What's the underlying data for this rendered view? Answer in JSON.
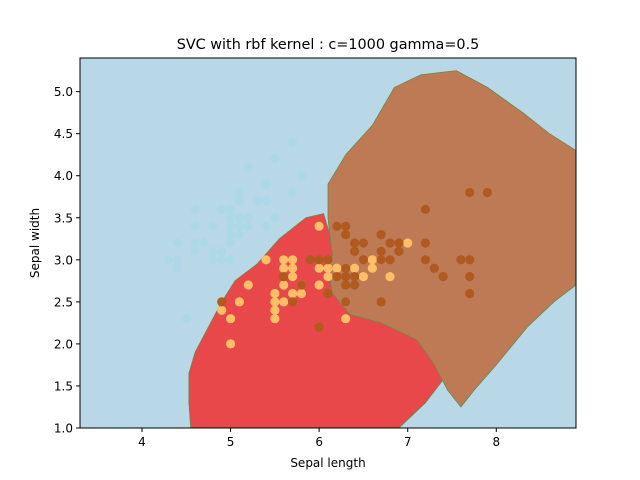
{
  "chart_data": {
    "type": "scatter",
    "title": "SVC with rbf kernel : c=1000 gamma=0.5",
    "xlabel": "Sepal length",
    "ylabel": "Sepal width",
    "xlim": [
      3.3,
      8.9
    ],
    "ylim": [
      1.0,
      5.4
    ],
    "x_ticks": [
      "4",
      "5",
      "6",
      "7",
      "8"
    ],
    "y_ticks": [
      "1.0",
      "1.5",
      "2.0",
      "2.5",
      "3.0",
      "3.5",
      "4.0",
      "4.5",
      "5.0"
    ],
    "grid": false,
    "legend": "none",
    "background_region_color": "#b8d8e8",
    "regions": [
      {
        "class": "versicolor",
        "color": "#e8484a",
        "outline": [
          [
            4.55,
            1.0
          ],
          [
            4.53,
            1.3
          ],
          [
            4.53,
            1.65
          ],
          [
            4.6,
            1.9
          ],
          [
            4.75,
            2.2
          ],
          [
            4.9,
            2.5
          ],
          [
            5.05,
            2.75
          ],
          [
            5.3,
            2.95
          ],
          [
            5.55,
            3.25
          ],
          [
            5.85,
            3.5
          ],
          [
            6.05,
            3.55
          ],
          [
            6.12,
            3.3
          ],
          [
            6.15,
            3.05
          ],
          [
            6.1,
            2.9
          ],
          [
            6.15,
            2.6
          ],
          [
            6.35,
            2.35
          ],
          [
            6.7,
            2.25
          ],
          [
            6.9,
            2.15
          ],
          [
            7.1,
            2.05
          ],
          [
            7.3,
            1.85
          ],
          [
            7.42,
            1.6
          ],
          [
            7.2,
            1.3
          ],
          [
            6.9,
            1.0
          ]
        ]
      },
      {
        "class": "virginica",
        "color": "#bd7a55",
        "outline": [
          [
            6.1,
            3.5
          ],
          [
            6.1,
            3.9
          ],
          [
            6.3,
            4.25
          ],
          [
            6.6,
            4.6
          ],
          [
            6.85,
            5.05
          ],
          [
            7.15,
            5.2
          ],
          [
            7.55,
            5.25
          ],
          [
            7.9,
            5.05
          ],
          [
            8.3,
            4.75
          ],
          [
            8.6,
            4.5
          ],
          [
            8.9,
            4.3
          ],
          [
            8.9,
            2.7
          ],
          [
            8.65,
            2.5
          ],
          [
            8.35,
            2.2
          ],
          [
            8.0,
            1.75
          ],
          [
            7.75,
            1.45
          ],
          [
            7.6,
            1.25
          ],
          [
            7.45,
            1.45
          ],
          [
            7.3,
            1.75
          ],
          [
            7.1,
            2.05
          ],
          [
            6.9,
            2.15
          ],
          [
            6.7,
            2.25
          ],
          [
            6.35,
            2.35
          ],
          [
            6.15,
            2.6
          ],
          [
            6.1,
            2.9
          ],
          [
            6.15,
            3.05
          ],
          [
            6.12,
            3.3
          ]
        ]
      }
    ],
    "series": [
      {
        "color": "#add8e6",
        "points": [
          [
            4.3,
            3.0
          ],
          [
            4.4,
            2.9
          ],
          [
            4.4,
            3.0
          ],
          [
            4.4,
            3.2
          ],
          [
            4.5,
            2.3
          ],
          [
            4.6,
            3.1
          ],
          [
            4.6,
            3.2
          ],
          [
            4.6,
            3.4
          ],
          [
            4.6,
            3.6
          ],
          [
            4.7,
            3.2
          ],
          [
            4.8,
            3.0
          ],
          [
            4.8,
            3.1
          ],
          [
            4.8,
            3.4
          ],
          [
            4.9,
            3.0
          ],
          [
            4.9,
            3.1
          ],
          [
            4.9,
            3.6
          ],
          [
            5.0,
            3.0
          ],
          [
            5.0,
            3.2
          ],
          [
            5.0,
            3.3
          ],
          [
            5.0,
            3.4
          ],
          [
            5.0,
            3.5
          ],
          [
            5.0,
            3.6
          ],
          [
            5.1,
            3.3
          ],
          [
            5.1,
            3.4
          ],
          [
            5.1,
            3.5
          ],
          [
            5.1,
            3.7
          ],
          [
            5.1,
            3.8
          ],
          [
            5.2,
            3.4
          ],
          [
            5.2,
            3.5
          ],
          [
            5.2,
            4.1
          ],
          [
            5.3,
            3.7
          ],
          [
            5.4,
            3.4
          ],
          [
            5.4,
            3.7
          ],
          [
            5.4,
            3.9
          ],
          [
            5.5,
            3.5
          ],
          [
            5.5,
            4.2
          ],
          [
            5.7,
            3.8
          ],
          [
            5.7,
            4.4
          ],
          [
            5.8,
            4.0
          ]
        ]
      },
      {
        "color": "#ffbf66",
        "points": [
          [
            4.9,
            2.4
          ],
          [
            5.0,
            2.0
          ],
          [
            5.0,
            2.3
          ],
          [
            5.1,
            2.5
          ],
          [
            5.2,
            2.7
          ],
          [
            5.4,
            3.0
          ],
          [
            5.5,
            2.3
          ],
          [
            5.5,
            2.4
          ],
          [
            5.5,
            2.5
          ],
          [
            5.5,
            2.6
          ],
          [
            5.6,
            2.5
          ],
          [
            5.6,
            2.7
          ],
          [
            5.6,
            2.9
          ],
          [
            5.6,
            3.0
          ],
          [
            5.7,
            2.6
          ],
          [
            5.7,
            2.8
          ],
          [
            5.7,
            2.9
          ],
          [
            5.7,
            3.0
          ],
          [
            5.8,
            2.6
          ],
          [
            5.8,
            2.7
          ],
          [
            6.0,
            2.7
          ],
          [
            6.0,
            2.9
          ],
          [
            6.0,
            3.4
          ],
          [
            6.1,
            2.8
          ],
          [
            6.1,
            2.9
          ],
          [
            6.2,
            2.9
          ],
          [
            6.3,
            2.3
          ],
          [
            6.3,
            2.5
          ],
          [
            6.3,
            2.9
          ],
          [
            6.4,
            2.9
          ],
          [
            6.5,
            2.8
          ],
          [
            6.6,
            2.9
          ],
          [
            6.6,
            3.0
          ],
          [
            6.7,
            3.0
          ],
          [
            6.8,
            2.8
          ],
          [
            7.0,
            3.2
          ]
        ]
      },
      {
        "color": "#b05a20",
        "points": [
          [
            4.9,
            2.5
          ],
          [
            5.6,
            2.8
          ],
          [
            5.7,
            2.5
          ],
          [
            5.8,
            2.7
          ],
          [
            5.9,
            3.0
          ],
          [
            6.0,
            2.2
          ],
          [
            6.0,
            3.0
          ],
          [
            6.1,
            2.6
          ],
          [
            6.1,
            3.0
          ],
          [
            6.2,
            2.8
          ],
          [
            6.2,
            3.4
          ],
          [
            6.3,
            2.5
          ],
          [
            6.3,
            2.7
          ],
          [
            6.3,
            2.8
          ],
          [
            6.3,
            2.9
          ],
          [
            6.3,
            3.3
          ],
          [
            6.3,
            3.4
          ],
          [
            6.4,
            2.7
          ],
          [
            6.4,
            2.8
          ],
          [
            6.4,
            3.1
          ],
          [
            6.4,
            3.2
          ],
          [
            6.5,
            3.0
          ],
          [
            6.5,
            3.2
          ],
          [
            6.7,
            2.5
          ],
          [
            6.7,
            3.0
          ],
          [
            6.7,
            3.1
          ],
          [
            6.7,
            3.3
          ],
          [
            6.8,
            3.0
          ],
          [
            6.8,
            3.2
          ],
          [
            6.9,
            3.1
          ],
          [
            6.9,
            3.2
          ],
          [
            7.2,
            3.0
          ],
          [
            7.2,
            3.2
          ],
          [
            7.2,
            3.6
          ],
          [
            7.3,
            2.9
          ],
          [
            7.4,
            2.8
          ],
          [
            7.6,
            3.0
          ],
          [
            7.7,
            2.6
          ],
          [
            7.7,
            2.8
          ],
          [
            7.7,
            3.0
          ],
          [
            7.7,
            3.8
          ],
          [
            7.9,
            3.8
          ]
        ]
      }
    ]
  }
}
